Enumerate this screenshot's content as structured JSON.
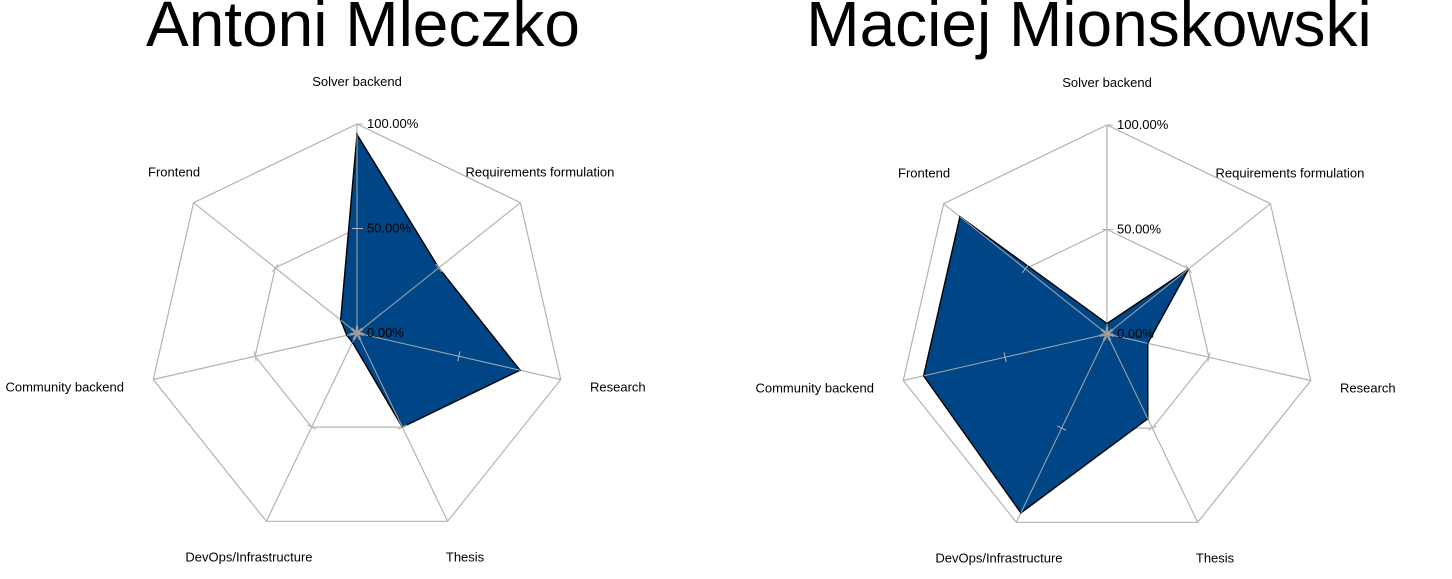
{
  "chart_data": [
    {
      "type": "radar",
      "title": "Antoni Mleczko",
      "categories": [
        "Solver backend",
        "Requirements formulation",
        "Research",
        "Thesis",
        "DevOps/Infrastructure",
        "Community backend",
        "Frontend"
      ],
      "values": [
        0.95,
        0.5,
        0.8,
        0.5,
        0.05,
        0.05,
        0.1
      ],
      "tick_labels": [
        "0.00%",
        "50.00%",
        "100.00%"
      ],
      "ylim": [
        0,
        1
      ],
      "grid": true,
      "fill_color": "#004586",
      "grid_color": "#b3b3b3"
    },
    {
      "type": "radar",
      "title": "Maciej Mionskowski",
      "categories": [
        "Solver backend",
        "Requirements formulation",
        "Research",
        "Thesis",
        "DevOps/Infrastructure",
        "Community backend",
        "Frontend"
      ],
      "values": [
        0.05,
        0.5,
        0.2,
        0.45,
        0.95,
        0.9,
        0.9
      ],
      "tick_labels": [
        "0.00%",
        "50.00%",
        "100.00%"
      ],
      "ylim": [
        0,
        1
      ],
      "grid": true,
      "fill_color": "#004586",
      "grid_color": "#b3b3b3"
    }
  ]
}
